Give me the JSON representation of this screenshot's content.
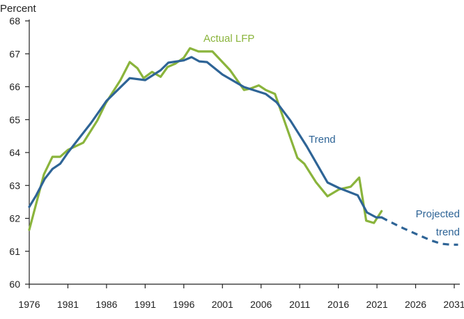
{
  "chart_data": {
    "type": "line",
    "title": "",
    "ylabel": "Percent",
    "xlabel": "",
    "ylim": [
      60,
      68
    ],
    "xlim": [
      1976,
      2031
    ],
    "yticks": [
      "60",
      "61",
      "62",
      "63",
      "64",
      "65",
      "66",
      "67",
      "68"
    ],
    "xticks": [
      "1976",
      "1981",
      "1986",
      "1991",
      "1996",
      "2001",
      "2006",
      "2011",
      "2016",
      "2021",
      "2026",
      "2031"
    ],
    "grid": false,
    "colors": {
      "actual": "#8ab43c",
      "trend": "#2e6496"
    },
    "series": [
      {
        "name": "Actual LFP",
        "label": "Actual LFP",
        "style": "solid",
        "x": [
          1976,
          1977.9,
          1979,
          1980,
          1981,
          1983,
          1984.8,
          1985.9,
          1987.8,
          1989,
          1990,
          1990.8,
          1991.9,
          1993,
          1993.9,
          1994.9,
          1996,
          1996.8,
          1997.9,
          1999.7,
          2002,
          2003.8,
          2004.7,
          2005.7,
          2006.6,
          2007.8,
          2008.9,
          2010.7,
          2011.6,
          2013.1,
          2014.6,
          2016.1,
          2017.6,
          2018.7,
          2019.6,
          2020.6,
          2021.6
        ],
        "y": [
          61.65,
          63.34,
          63.87,
          63.87,
          64.08,
          64.3,
          64.97,
          65.5,
          66.2,
          66.75,
          66.56,
          66.26,
          66.45,
          66.3,
          66.6,
          66.7,
          66.88,
          67.17,
          67.07,
          67.07,
          66.5,
          65.9,
          65.95,
          66.04,
          65.9,
          65.78,
          65.04,
          63.84,
          63.66,
          63.1,
          62.67,
          62.88,
          62.96,
          63.24,
          61.93,
          61.86,
          62.22
        ]
      },
      {
        "name": "Trend",
        "label": "Trend",
        "style": "solid",
        "x": [
          1976,
          1976.9,
          1978,
          1979,
          1980,
          1981,
          1984,
          1986,
          1989,
          1991,
          1993,
          1994,
          1996,
          1997,
          1998,
          1999,
          2001,
          2003.8,
          2006.6,
          2008,
          2009.8,
          2011.9,
          2014.6,
          2016.1,
          2018.5,
          2019.7,
          2020.9,
          2021.6
        ],
        "y": [
          62.35,
          62.7,
          63.2,
          63.5,
          63.66,
          64.0,
          64.9,
          65.57,
          66.26,
          66.2,
          66.5,
          66.73,
          66.8,
          66.9,
          66.77,
          66.75,
          66.37,
          65.99,
          65.78,
          65.53,
          64.97,
          64.19,
          63.09,
          62.92,
          62.7,
          62.18,
          62.03,
          62.03
        ]
      },
      {
        "name": "Projected trend",
        "label_line1": "Projected",
        "label_line2": "trend",
        "style": "dashed",
        "x": [
          2021.6,
          2022.4,
          2024.4,
          2026.3,
          2028,
          2029.3,
          2030.5,
          2031.5
        ],
        "y": [
          62.03,
          61.93,
          61.7,
          61.5,
          61.33,
          61.23,
          61.2,
          61.2
        ]
      }
    ]
  }
}
